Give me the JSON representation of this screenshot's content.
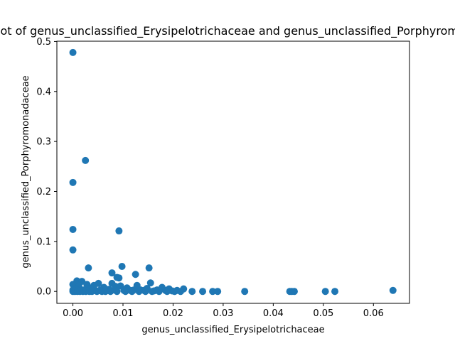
{
  "chart_data": {
    "type": "scatter",
    "title": "Scatter plot of genus_unclassified_Erysipelotrichaceae and genus_unclassified_Porphyromonadaceae",
    "xlabel": "genus_unclassified_Erysipelotrichaceae",
    "ylabel": "genus_unclassified_Porphyromonadaceae",
    "xlim": [
      -0.0032,
      0.0672
    ],
    "ylim": [
      -0.0239,
      0.5006
    ],
    "xticks": [
      0.0,
      0.01,
      0.02,
      0.03,
      0.04,
      0.05,
      0.06
    ],
    "xtick_labels": [
      "0.00",
      "0.01",
      "0.02",
      "0.03",
      "0.04",
      "0.05",
      "0.06"
    ],
    "yticks": [
      0.0,
      0.1,
      0.2,
      0.3,
      0.4,
      0.5
    ],
    "ytick_labels": [
      "0.0",
      "0.1",
      "0.2",
      "0.3",
      "0.4",
      "0.5"
    ],
    "grid": false,
    "legend": false,
    "marker_color": "#1f77b4",
    "points": [
      [
        0.0,
        0.478
      ],
      [
        0.0025,
        0.262
      ],
      [
        0.0,
        0.218
      ],
      [
        0.0,
        0.124
      ],
      [
        0.0,
        0.083
      ],
      [
        0.0092,
        0.121
      ],
      [
        0.0098,
        0.05
      ],
      [
        0.0152,
        0.047
      ],
      [
        0.0031,
        0.047
      ],
      [
        0.0078,
        0.037
      ],
      [
        0.0125,
        0.034
      ],
      [
        0.0092,
        0.027
      ],
      [
        0.0088,
        0.028
      ],
      [
        0.0008,
        0.021
      ],
      [
        0.0018,
        0.02
      ],
      [
        0.0078,
        0.016
      ],
      [
        0.0155,
        0.017
      ],
      [
        0.0051,
        0.016
      ],
      [
        0.0,
        0.014
      ],
      [
        0.0028,
        0.014
      ],
      [
        0.0042,
        0.012
      ],
      [
        0.0095,
        0.011
      ],
      [
        0.0128,
        0.012
      ],
      [
        0.0085,
        0.01
      ],
      [
        0.0012,
        0.01
      ],
      [
        0.0062,
        0.008
      ],
      [
        0.0108,
        0.007
      ],
      [
        0.0178,
        0.008
      ],
      [
        0.0148,
        0.006
      ],
      [
        0.0192,
        0.005
      ],
      [
        0.0221,
        0.005
      ],
      [
        0.0005,
        0.005
      ],
      [
        0.0035,
        0.006
      ],
      [
        0.0072,
        0.004
      ],
      [
        0.0135,
        0.003
      ],
      [
        0.0168,
        0.003
      ],
      [
        0.0208,
        0.002
      ],
      [
        0.0,
        0.003
      ],
      [
        0.0015,
        0.002
      ],
      [
        0.0022,
        0.003
      ],
      [
        0.0045,
        0.002
      ],
      [
        0.0055,
        0.003
      ],
      [
        0.0068,
        0.002
      ],
      [
        0.0082,
        0.003
      ],
      [
        0.0102,
        0.002
      ],
      [
        0.0115,
        0.002
      ],
      [
        0.0122,
        0.003
      ],
      [
        0.0142,
        0.002
      ],
      [
        0.0162,
        0.001
      ],
      [
        0.0185,
        0.002
      ],
      [
        0.0198,
        0.001
      ],
      [
        0.0,
        0.0
      ],
      [
        0.0004,
        0.0
      ],
      [
        0.0009,
        0.0
      ],
      [
        0.0014,
        0.0
      ],
      [
        0.002,
        0.0
      ],
      [
        0.0026,
        0.0
      ],
      [
        0.0033,
        0.0
      ],
      [
        0.0038,
        0.0
      ],
      [
        0.0048,
        0.0
      ],
      [
        0.0058,
        0.0
      ],
      [
        0.0065,
        0.0
      ],
      [
        0.0075,
        0.0
      ],
      [
        0.0088,
        0.0
      ],
      [
        0.0105,
        0.0
      ],
      [
        0.0118,
        0.0
      ],
      [
        0.0132,
        0.0
      ],
      [
        0.0145,
        0.0
      ],
      [
        0.0158,
        0.0
      ],
      [
        0.0172,
        0.0
      ],
      [
        0.0188,
        0.0
      ],
      [
        0.0203,
        0.0
      ],
      [
        0.0215,
        0.0
      ],
      [
        0.0238,
        0.0
      ],
      [
        0.0259,
        0.0
      ],
      [
        0.0279,
        0.0
      ],
      [
        0.0289,
        0.0
      ],
      [
        0.0343,
        0.0
      ],
      [
        0.0433,
        0.0
      ],
      [
        0.0437,
        0.0
      ],
      [
        0.0442,
        0.0
      ],
      [
        0.0504,
        0.0
      ],
      [
        0.0523,
        0.0
      ],
      [
        0.0639,
        0.002
      ]
    ]
  }
}
